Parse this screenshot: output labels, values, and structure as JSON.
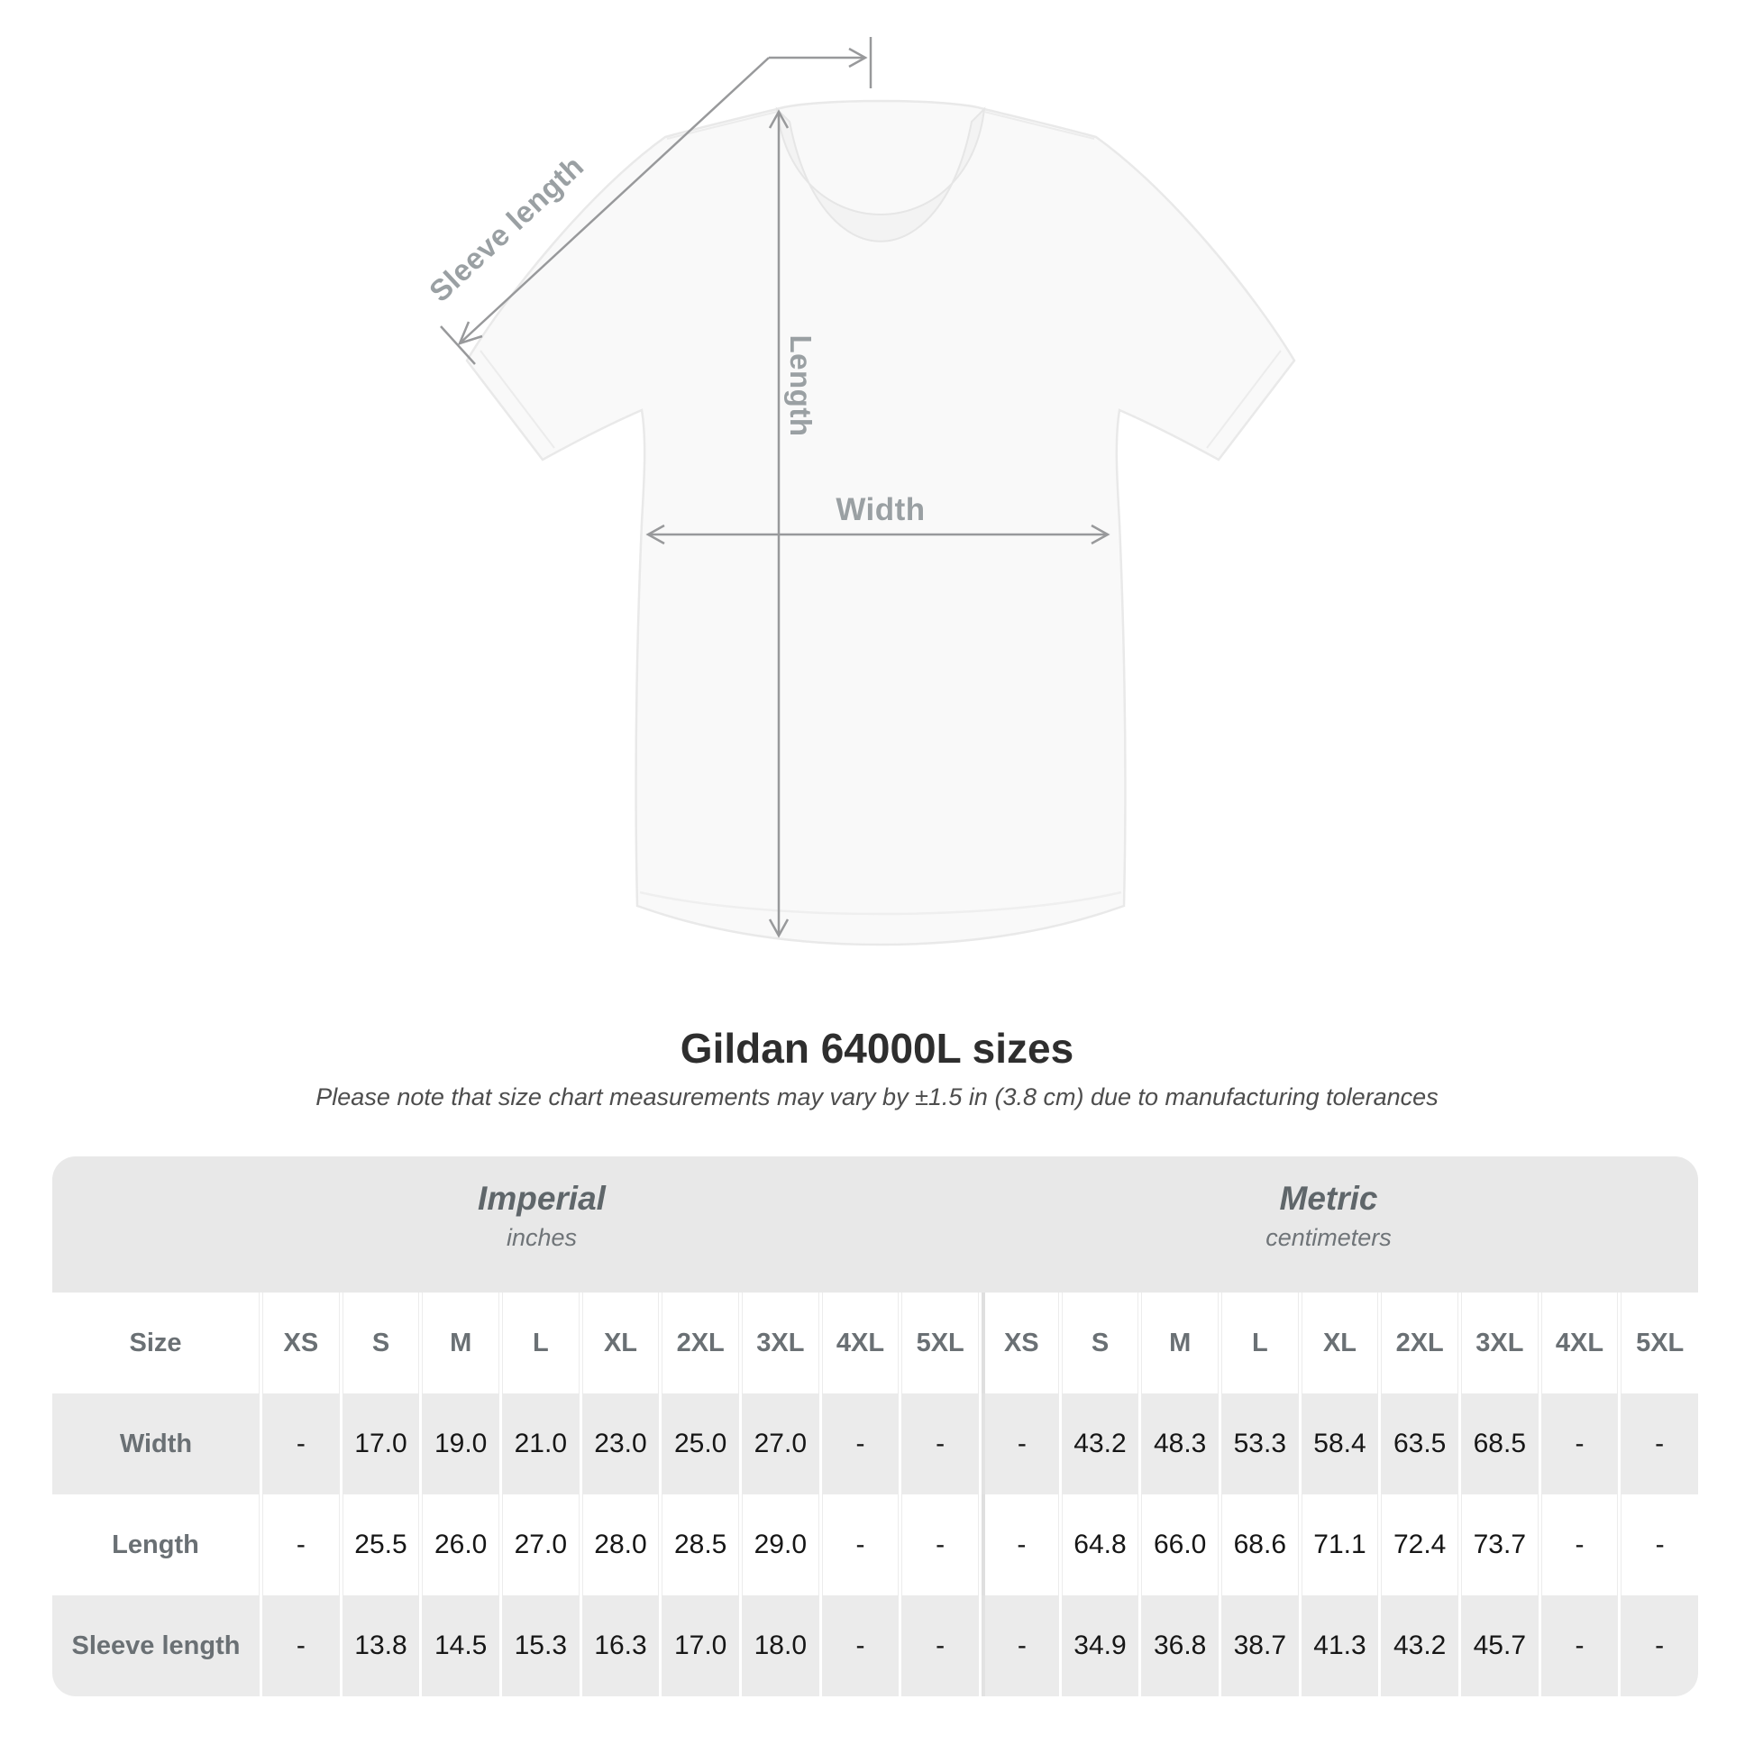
{
  "diagram": {
    "labels": {
      "sleeve_length": "Sleeve length",
      "length": "Length",
      "width": "Width"
    }
  },
  "title": "Gildan 64000L sizes",
  "subtitle": "Please note that size chart measurements may vary by ±1.5 in (3.8 cm) due to manufacturing tolerances",
  "table": {
    "unit_groups": [
      {
        "name": "Imperial",
        "unit": "inches"
      },
      {
        "name": "Metric",
        "unit": "centimeters"
      }
    ],
    "size_header_label": "Size",
    "sizes": [
      "XS",
      "S",
      "M",
      "L",
      "XL",
      "2XL",
      "3XL",
      "4XL",
      "5XL"
    ],
    "rows": [
      {
        "label": "Width",
        "imperial": [
          "-",
          "17.0",
          "19.0",
          "21.0",
          "23.0",
          "25.0",
          "27.0",
          "-",
          "-"
        ],
        "metric": [
          "-",
          "43.2",
          "48.3",
          "53.3",
          "58.4",
          "63.5",
          "68.5",
          "-",
          "-"
        ]
      },
      {
        "label": "Length",
        "imperial": [
          "-",
          "25.5",
          "26.0",
          "27.0",
          "28.0",
          "28.5",
          "29.0",
          "-",
          "-"
        ],
        "metric": [
          "-",
          "64.8",
          "66.0",
          "68.6",
          "71.1",
          "72.4",
          "73.7",
          "-",
          "-"
        ]
      },
      {
        "label": "Sleeve length",
        "imperial": [
          "-",
          "13.8",
          "14.5",
          "15.3",
          "16.3",
          "17.0",
          "18.0",
          "-",
          "-"
        ],
        "metric": [
          "-",
          "34.9",
          "36.8",
          "38.7",
          "41.3",
          "43.2",
          "45.7",
          "-",
          "-"
        ]
      }
    ]
  },
  "colors": {
    "annotation_gray": "#98999b",
    "label_gray": "#9aa0a3",
    "band_gray": "#e8e8e8",
    "row_gray": "#ebebeb",
    "heading_gray": "#6a7074",
    "value_black": "#161616"
  }
}
